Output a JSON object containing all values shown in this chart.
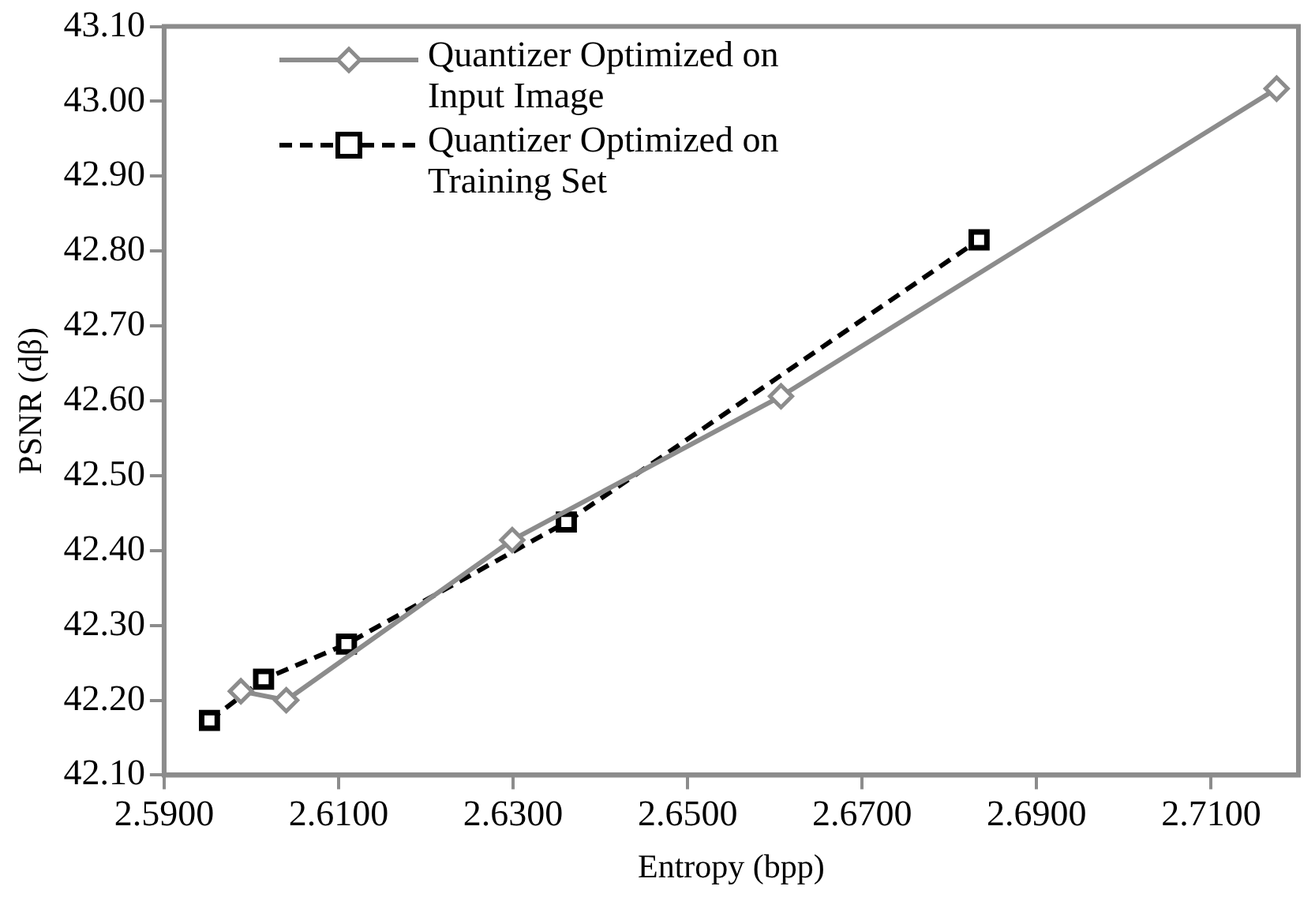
{
  "chart_data": {
    "type": "line",
    "xlabel": "Entropy (bpp)",
    "ylabel": "PSNR (dβ)",
    "xlim": [
      2.59,
      2.72
    ],
    "xticks": [
      {
        "value": 2.59,
        "label": "2.5900"
      },
      {
        "value": 2.61,
        "label": "2.6100"
      },
      {
        "value": 2.63,
        "label": "2.6300"
      },
      {
        "value": 2.65,
        "label": "2.6500"
      },
      {
        "value": 2.67,
        "label": "2.6700"
      },
      {
        "value": 2.69,
        "label": "2.6900"
      },
      {
        "value": 2.71,
        "label": "2.7100"
      }
    ],
    "ylim": [
      42.1,
      43.1
    ],
    "yticks": [
      {
        "value": 42.1,
        "label": "42.10"
      },
      {
        "value": 42.2,
        "label": "42.20"
      },
      {
        "value": 42.3,
        "label": "42.30"
      },
      {
        "value": 42.4,
        "label": "42.40"
      },
      {
        "value": 42.5,
        "label": "42.50"
      },
      {
        "value": 42.6,
        "label": "42.60"
      },
      {
        "value": 42.7,
        "label": "42.70"
      },
      {
        "value": 42.8,
        "label": "42.80"
      },
      {
        "value": 42.9,
        "label": "42.90"
      },
      {
        "value": 43.0,
        "label": "43.00"
      },
      {
        "value": 43.1,
        "label": "43.10"
      }
    ],
    "grid": false,
    "legend": "top left",
    "series": [
      {
        "name": "Quantizer Optimized on Input Image",
        "color": "#8c8c8c",
        "marker": "diamond",
        "line_style": "solid",
        "x": [
          2.5988,
          2.604,
          2.6299,
          2.6607,
          2.7175
        ],
        "values": [
          42.212,
          42.2,
          42.414,
          42.606,
          43.017
        ]
      },
      {
        "name": "Quantizer Optimized on Training Set",
        "color": "#000000",
        "marker": "square",
        "line_style": "dashed",
        "x": [
          2.5952,
          2.6014,
          2.6109,
          2.6361,
          2.6834
        ],
        "values": [
          42.173,
          42.228,
          42.275,
          42.438,
          42.815
        ]
      }
    ]
  }
}
